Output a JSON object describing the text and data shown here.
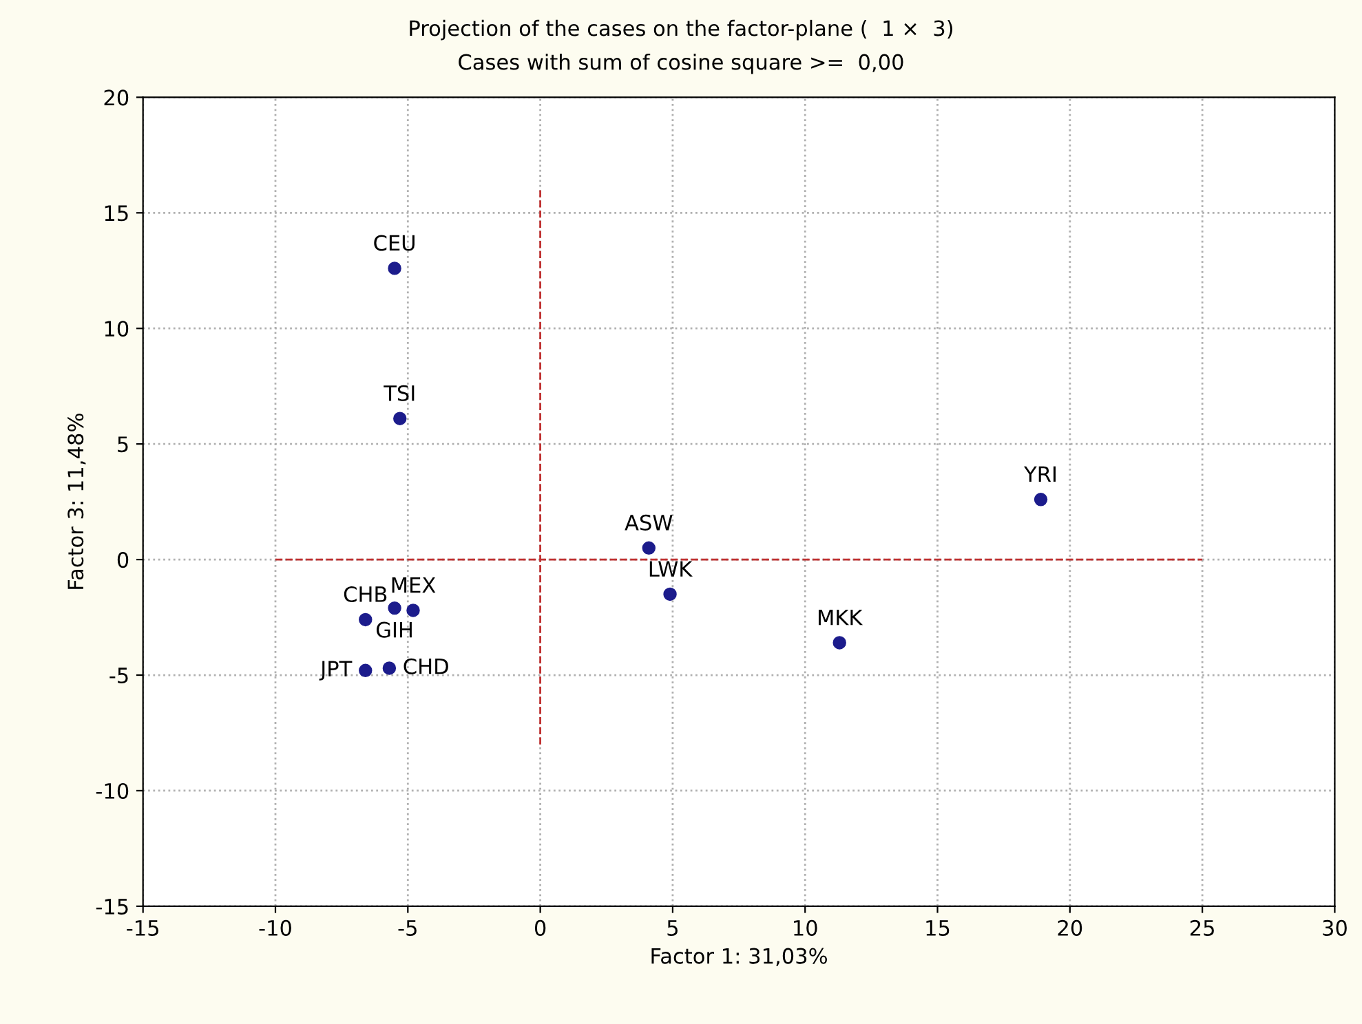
{
  "chart_data": {
    "type": "scatter",
    "title": "Projection of the cases on the factor-plane (  1 ×  3)",
    "subtitle": "Cases with sum of cosine square >=  0,00",
    "xlabel": "Factor 1: 31,03%",
    "ylabel": "Factor 3: 11,48%",
    "series": [
      {
        "color": "#1c1c8c",
        "marker": "circle",
        "x": [
          -5.5,
          -5.3,
          4.1,
          4.9,
          18.9,
          11.3,
          -6.6,
          -5.5,
          -4.8,
          -6.6,
          -5.7
        ],
        "values": [
          12.6,
          6.1,
          0.5,
          -1.5,
          2.6,
          -3.6,
          -2.6,
          -2.1,
          -2.2,
          -4.8,
          -4.7
        ]
      },
      {
        "type": "line",
        "color": "#c03030",
        "line_style": "dashed",
        "marker": "none",
        "x": [
          0,
          0
        ],
        "values": [
          -8,
          16
        ]
      },
      {
        "type": "line",
        "color": "#c03030",
        "line_style": "dashed",
        "marker": "none",
        "x": [
          -10,
          25
        ],
        "values": [
          0,
          0
        ]
      }
    ],
    "annotations": [
      {
        "text": "CEU",
        "x": -5.5,
        "y": 12.6
      },
      {
        "text": "TSI",
        "x": -5.3,
        "y": 6.1
      },
      {
        "text": "ASW",
        "x": 4.1,
        "y": 0.5
      },
      {
        "text": "LWK",
        "x": 4.9,
        "y": -1.5
      },
      {
        "text": "YRI",
        "x": 18.9,
        "y": 2.6
      },
      {
        "text": "MKK",
        "x": 11.3,
        "y": -3.6
      },
      {
        "text": "CHB",
        "x": -6.6,
        "y": -2.6
      },
      {
        "text": "GIH",
        "x": -5.5,
        "y": -2.1
      },
      {
        "text": "MEX",
        "x": -4.8,
        "y": -2.2
      },
      {
        "text": "JPT",
        "x": -6.6,
        "y": -4.8
      },
      {
        "text": "CHD",
        "x": -5.7,
        "y": -4.7
      }
    ],
    "xlim": [
      -15,
      30
    ],
    "xticks": [
      -15,
      -10,
      -5,
      0,
      5,
      10,
      15,
      20,
      25,
      30
    ],
    "ylim": [
      -15,
      20
    ],
    "yticks": [
      -15,
      -10,
      -5,
      0,
      5,
      10,
      15,
      20
    ],
    "grid": true,
    "legend": false
  }
}
